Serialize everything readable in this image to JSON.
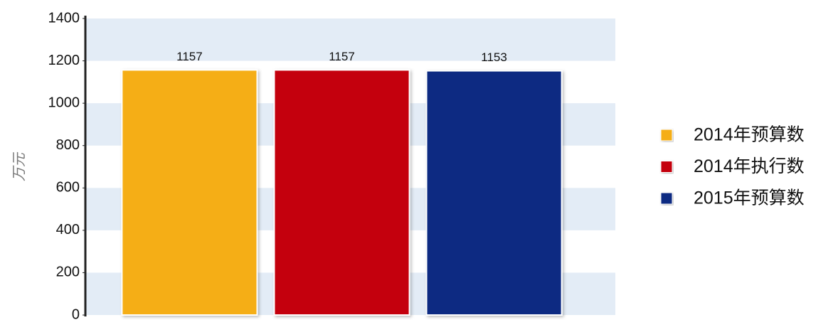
{
  "chart_data": {
    "type": "bar",
    "y_label": "万元",
    "categories": [
      null
    ],
    "series": [
      {
        "name": "2014年预算数",
        "color": "#f5ae13",
        "values": [
          1157
        ]
      },
      {
        "name": "2014年执行数",
        "color": "#c40608",
        "values": [
          1157
        ]
      },
      {
        "name": "2015年预算数",
        "color": "#0a2a82",
        "values": [
          1153
        ]
      }
    ],
    "ylim": [
      0,
      1400
    ],
    "yticks": [
      0,
      200,
      400,
      600,
      800,
      1000,
      1200,
      1400
    ],
    "grid": true,
    "legend": "right"
  }
}
